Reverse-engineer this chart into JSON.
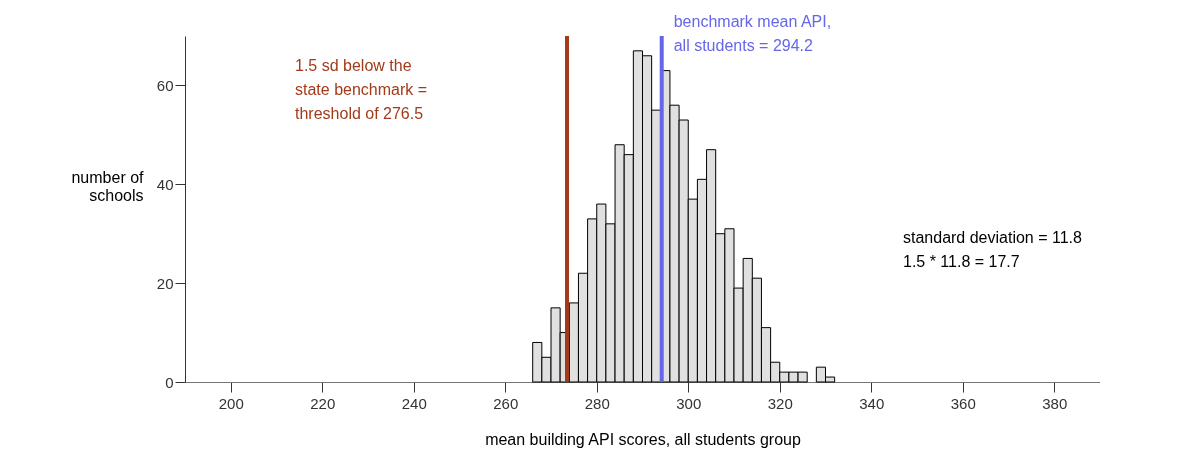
{
  "chart_data": {
    "type": "histogram",
    "xlabel": "mean building API scores, all students group",
    "ylabel": "number of\nschools",
    "bins": [
      266,
      268,
      270,
      272,
      274,
      276,
      278,
      280,
      282,
      284,
      286,
      288,
      290,
      292,
      294,
      296,
      298,
      300,
      302,
      304,
      306,
      308,
      310,
      312,
      314,
      316,
      318,
      320,
      322,
      324,
      326,
      328,
      330,
      332
    ],
    "values": [
      8,
      5,
      15,
      10,
      16,
      22,
      33,
      36,
      32,
      48,
      46,
      67,
      66,
      55,
      63,
      56,
      53,
      37,
      41,
      47,
      30,
      31,
      19,
      25,
      21,
      11,
      4,
      2,
      2,
      2,
      0,
      3,
      1
    ],
    "color": "#e0e0e0",
    "xlim": [
      190,
      390
    ],
    "xticks": [
      200,
      220,
      240,
      260,
      280,
      300,
      320,
      340,
      360,
      380
    ],
    "ylim": [
      0,
      70
    ],
    "yticks": [
      0,
      20,
      40,
      60
    ],
    "grid": false,
    "ref_lines": [
      {
        "axis": "x",
        "value": 273.5,
        "label": "1.5 sd below the\nstate benchmark =\nthreshold of 276.5",
        "color": "#a33a1a"
      },
      {
        "axis": "x",
        "value": 294.2,
        "label": "benchmark mean API,\nall students = 294.2",
        "color": "#6666e8"
      }
    ],
    "annotations": [
      "standard deviation = 11.8\n1.5 * 11.8 = 17.7"
    ]
  }
}
